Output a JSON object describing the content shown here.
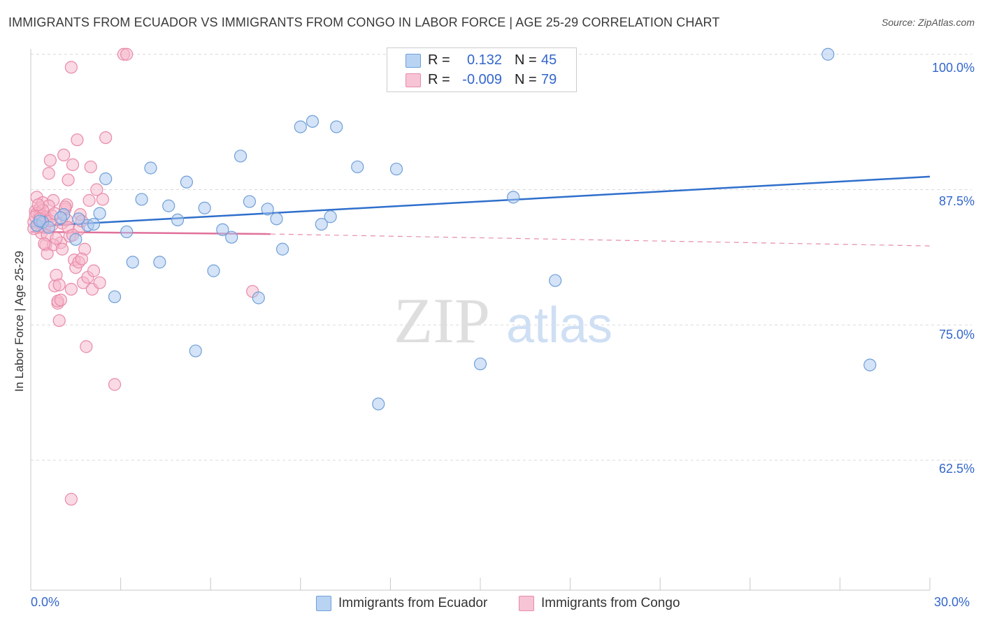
{
  "header": {
    "title": "IMMIGRANTS FROM ECUADOR VS IMMIGRANTS FROM CONGO IN LABOR FORCE | AGE 25-29 CORRELATION CHART",
    "source": "Source: ZipAtlas.com"
  },
  "watermark": {
    "zip": "ZIP",
    "atlas": "atlas"
  },
  "stats_legend": {
    "ecuador": {
      "r_label": "R =",
      "r_value": "0.132",
      "n_label": "N =",
      "n_value": "45"
    },
    "congo": {
      "r_label": "R =",
      "r_value": "-0.009",
      "n_label": "N =",
      "n_value": "79"
    }
  },
  "colors": {
    "ecuador_fill": "#a9c8f0",
    "ecuador_stroke": "#6f9fd8",
    "ecuador_line": "#2f6fcc",
    "congo_fill": "#f5b6ca",
    "congo_stroke": "#e88aa8",
    "congo_line": "#e0709a",
    "tick_label": "#3366cc",
    "grid": "#d9d9d9"
  },
  "chart_data": {
    "type": "scatter",
    "title": "IMMIGRANTS FROM ECUADOR VS IMMIGRANTS FROM CONGO IN LABOR FORCE | AGE 25-29 CORRELATION CHART",
    "xlabel": "",
    "ylabel": "In Labor Force | Age 25-29",
    "xlim": [
      0,
      30
    ],
    "ylim": [
      50.5,
      100.5
    ],
    "x_tick_labels": [
      "0.0%",
      "30.0%"
    ],
    "y_ticks": [
      62.5,
      75.0,
      87.5,
      100.0
    ],
    "y_tick_labels": [
      "62.5%",
      "75.0%",
      "87.5%",
      "100.0%"
    ],
    "legend": [
      "Immigrants from Ecuador",
      "Immigrants from Congo"
    ],
    "series": [
      {
        "name": "Immigrants from Ecuador",
        "trend": {
          "x": [
            0,
            30
          ],
          "y": [
            84.1,
            88.7
          ],
          "style": "solid"
        },
        "points": [
          [
            0.2,
            84.2
          ],
          [
            0.4,
            84.5
          ],
          [
            1.1,
            85.2
          ],
          [
            1.5,
            82.9
          ],
          [
            1.6,
            84.8
          ],
          [
            1.9,
            84.2
          ],
          [
            2.3,
            85.3
          ],
          [
            2.5,
            88.5
          ],
          [
            2.8,
            77.6
          ],
          [
            3.2,
            83.6
          ],
          [
            3.4,
            80.8
          ],
          [
            3.7,
            86.6
          ],
          [
            4.0,
            89.5
          ],
          [
            4.3,
            80.8
          ],
          [
            4.6,
            86.0
          ],
          [
            4.9,
            84.7
          ],
          [
            5.2,
            88.2
          ],
          [
            5.5,
            72.6
          ],
          [
            5.8,
            85.8
          ],
          [
            6.1,
            80.0
          ],
          [
            6.4,
            83.8
          ],
          [
            6.7,
            83.1
          ],
          [
            7.0,
            90.6
          ],
          [
            7.3,
            86.4
          ],
          [
            7.6,
            77.5
          ],
          [
            7.9,
            85.7
          ],
          [
            8.2,
            84.8
          ],
          [
            8.4,
            82.0
          ],
          [
            9.0,
            93.3
          ],
          [
            9.4,
            93.8
          ],
          [
            9.7,
            84.3
          ],
          [
            10.0,
            85.0
          ],
          [
            10.2,
            93.3
          ],
          [
            10.9,
            89.6
          ],
          [
            11.6,
            67.7
          ],
          [
            12.2,
            89.4
          ],
          [
            15.0,
            71.4
          ],
          [
            16.1,
            86.8
          ],
          [
            17.5,
            79.1
          ],
          [
            26.6,
            100.0
          ],
          [
            28.0,
            71.3
          ],
          [
            0.3,
            84.6
          ],
          [
            0.6,
            84.0
          ],
          [
            1.0,
            84.9
          ],
          [
            2.1,
            84.3
          ]
        ]
      },
      {
        "name": "Immigrants from Congo",
        "trend": {
          "x": [
            0,
            8
          ],
          "y": [
            83.6,
            83.4
          ],
          "style": "solid",
          "extension": {
            "x": [
              8,
              30
            ],
            "y": [
              83.4,
              82.3
            ],
            "style": "dashed"
          }
        },
        "points": [
          [
            0.1,
            84.5
          ],
          [
            0.15,
            85.5
          ],
          [
            0.2,
            86.8
          ],
          [
            0.25,
            84.0
          ],
          [
            0.3,
            85.8
          ],
          [
            0.35,
            83.5
          ],
          [
            0.4,
            86.3
          ],
          [
            0.45,
            84.9
          ],
          [
            0.5,
            82.4
          ],
          [
            0.55,
            81.6
          ],
          [
            0.6,
            89.0
          ],
          [
            0.65,
            90.2
          ],
          [
            0.7,
            85.1
          ],
          [
            0.75,
            86.5
          ],
          [
            0.8,
            78.6
          ],
          [
            0.85,
            79.6
          ],
          [
            0.9,
            77.0
          ],
          [
            0.95,
            75.4
          ],
          [
            1.0,
            82.6
          ],
          [
            1.05,
            84.4
          ],
          [
            1.1,
            90.7
          ],
          [
            1.15,
            85.7
          ],
          [
            1.2,
            86.1
          ],
          [
            1.25,
            88.4
          ],
          [
            1.3,
            83.2
          ],
          [
            1.35,
            78.3
          ],
          [
            1.4,
            89.8
          ],
          [
            1.45,
            81.0
          ],
          [
            1.5,
            80.3
          ],
          [
            1.55,
            92.1
          ],
          [
            1.6,
            83.8
          ],
          [
            1.65,
            85.2
          ],
          [
            1.7,
            84.6
          ],
          [
            1.75,
            78.9
          ],
          [
            1.8,
            82.0
          ],
          [
            1.85,
            73.0
          ],
          [
            1.9,
            79.4
          ],
          [
            1.95,
            86.5
          ],
          [
            2.0,
            89.6
          ],
          [
            2.05,
            78.3
          ],
          [
            2.1,
            80.0
          ],
          [
            2.2,
            87.5
          ],
          [
            2.3,
            78.9
          ],
          [
            2.4,
            86.6
          ],
          [
            2.5,
            92.3
          ],
          [
            2.8,
            69.5
          ],
          [
            3.1,
            100.0
          ],
          [
            3.2,
            100.0
          ],
          [
            7.4,
            78.1
          ],
          [
            1.35,
            98.8
          ],
          [
            1.35,
            58.9
          ],
          [
            0.45,
            84.0
          ],
          [
            0.5,
            85.0
          ],
          [
            0.55,
            83.3
          ],
          [
            0.6,
            86.0
          ],
          [
            0.7,
            84.2
          ],
          [
            0.75,
            82.4
          ],
          [
            0.85,
            83.0
          ],
          [
            0.9,
            77.2
          ],
          [
            0.95,
            78.7
          ],
          [
            1.0,
            77.3
          ],
          [
            1.05,
            82.0
          ],
          [
            1.15,
            85.9
          ],
          [
            1.2,
            84.7
          ],
          [
            1.25,
            84.0
          ],
          [
            1.4,
            83.3
          ],
          [
            1.6,
            80.8
          ],
          [
            1.7,
            81.1
          ],
          [
            0.2,
            85.3
          ],
          [
            0.3,
            85.1
          ],
          [
            0.35,
            84.4
          ],
          [
            0.4,
            85.6
          ],
          [
            0.1,
            83.9
          ],
          [
            0.15,
            85.0
          ],
          [
            0.25,
            86.1
          ],
          [
            0.3,
            84.8
          ],
          [
            0.45,
            82.5
          ],
          [
            0.65,
            84.6
          ],
          [
            0.8,
            85.3
          ]
        ]
      }
    ]
  },
  "axis": {
    "y_label": "In Labor Force | Age 25-29",
    "x_min_label": "0.0%",
    "x_max_label": "30.0%",
    "y_labels": {
      "t1": "100.0%",
      "t2": "87.5%",
      "t3": "75.0%",
      "t4": "62.5%"
    }
  },
  "bottom_legend": {
    "ecuador": "Immigrants from Ecuador",
    "congo": "Immigrants from Congo"
  }
}
